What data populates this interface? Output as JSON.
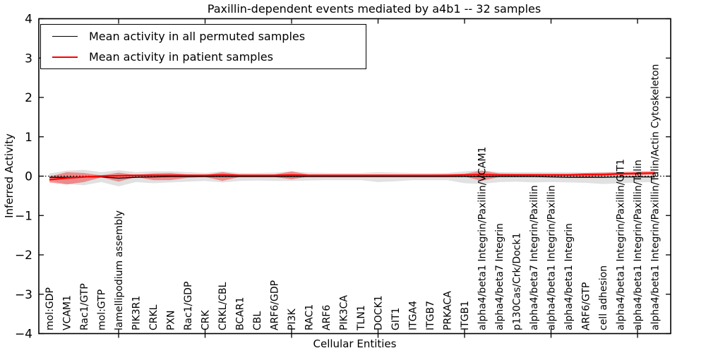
{
  "title": "Paxillin-dependent events mediated by a4b1 -- 32 samples",
  "axes": {
    "xlabel": "Cellular Entities",
    "ylabel": "Inferred Activity"
  },
  "chart_data": {
    "type": "line",
    "title": "Paxillin-dependent events mediated by a4b1 -- 32 samples",
    "xlabel": "Cellular Entities",
    "ylabel": "Inferred Activity",
    "ylim": [
      -4,
      4
    ],
    "yticks": [
      4,
      3,
      2,
      1,
      0,
      -1,
      -2,
      -3,
      -4
    ],
    "grid": false,
    "zero_line": true,
    "legend_position": "upper left",
    "x_major_tick_indices": [
      4,
      9,
      14,
      19,
      24,
      29,
      34
    ],
    "categories": [
      "mol:GDP",
      "VCAM1",
      "Rac1/GTP",
      "mol:GTP",
      "lamellipodium assembly",
      "PIK3R1",
      "CRKL",
      "PXN",
      "Rac1/GDP",
      "CRK",
      "CRKL/CBL",
      "BCAR1",
      "CBL",
      "ARF6/GDP",
      "PI3K",
      "RAC1",
      "ARF6",
      "PIK3CA",
      "TLN1",
      "DOCK1",
      "GIT1",
      "ITGA4",
      "ITGB7",
      "PRKACA",
      "ITGB1",
      "alpha4/beta1 Integrin/Paxillin/VCAM1",
      "alpha4/beta7 Integrin",
      "p130Cas/Crk/Dock1",
      "alpha4/beta7 Integrin/Paxillin",
      "alpha4/beta1 Integrin/Paxillin",
      "alpha4/beta1 Integrin",
      "ARF6/GTP",
      "cell adhesion",
      "alpha4/beta1 Integrin/Paxillin/GIT1",
      "alpha4/beta1 Integrin/Paxillin/Talin",
      "alpha4/beta1 Integrin/Paxillin/Talin/Actin Cytoskeleton"
    ],
    "series": [
      {
        "name": "Mean activity in all permuted samples",
        "color": "#000000",
        "line_width": 1.3,
        "band_color": "#444444",
        "band_opacity": 0.16,
        "mean": [
          -0.03,
          -0.03,
          -0.02,
          -0.02,
          -0.05,
          -0.03,
          -0.02,
          -0.01,
          -0.01,
          -0.01,
          -0.01,
          -0.01,
          -0.01,
          -0.01,
          -0.01,
          -0.01,
          -0.01,
          -0.01,
          -0.01,
          -0.01,
          -0.01,
          -0.01,
          -0.01,
          -0.01,
          -0.01,
          -0.01,
          -0.01,
          -0.01,
          -0.01,
          -0.02,
          -0.03,
          -0.03,
          -0.03,
          -0.02,
          -0.02,
          -0.02
        ],
        "upper": [
          0.07,
          0.14,
          0.16,
          0.1,
          0.15,
          0.1,
          0.12,
          0.12,
          0.1,
          0.08,
          0.12,
          0.08,
          0.08,
          0.09,
          0.12,
          0.09,
          0.08,
          0.08,
          0.08,
          0.1,
          0.09,
          0.08,
          0.08,
          0.08,
          0.12,
          0.15,
          0.1,
          0.1,
          0.1,
          0.1,
          0.1,
          0.09,
          0.1,
          0.1,
          0.09,
          0.1
        ],
        "lower": [
          -0.12,
          -0.2,
          -0.23,
          -0.15,
          -0.26,
          -0.15,
          -0.18,
          -0.16,
          -0.14,
          -0.12,
          -0.16,
          -0.12,
          -0.11,
          -0.12,
          -0.12,
          -0.11,
          -0.1,
          -0.1,
          -0.1,
          -0.15,
          -0.13,
          -0.1,
          -0.1,
          -0.1,
          -0.18,
          -0.2,
          -0.15,
          -0.14,
          -0.16,
          -0.15,
          -0.16,
          -0.17,
          -0.2,
          -0.18,
          -0.16,
          -0.15
        ]
      },
      {
        "name": "Mean activity in patient samples",
        "color": "#ff0000",
        "line_width": 2.2,
        "band_color": "#ff0000",
        "band_opacity": 0.38,
        "mean": [
          -0.09,
          -0.05,
          -0.02,
          0.0,
          0.01,
          0.02,
          0.02,
          0.02,
          0.02,
          0.02,
          0.03,
          0.02,
          0.02,
          0.02,
          0.03,
          0.02,
          0.02,
          0.02,
          0.02,
          0.02,
          0.02,
          0.02,
          0.02,
          0.02,
          0.03,
          0.04,
          0.03,
          0.03,
          0.03,
          0.03,
          0.03,
          0.04,
          0.04,
          0.06,
          0.07,
          0.08
        ],
        "upper": [
          -0.01,
          0.1,
          0.08,
          0.02,
          0.09,
          0.03,
          0.07,
          0.08,
          0.04,
          0.03,
          0.1,
          0.04,
          0.03,
          0.04,
          0.12,
          0.04,
          0.04,
          0.04,
          0.04,
          0.04,
          0.04,
          0.04,
          0.04,
          0.05,
          0.06,
          0.14,
          0.07,
          0.06,
          0.06,
          0.06,
          0.06,
          0.08,
          0.09,
          0.1,
          0.12,
          0.13
        ],
        "lower": [
          -0.16,
          -0.21,
          -0.15,
          -0.03,
          -0.14,
          -0.02,
          -0.1,
          -0.1,
          -0.04,
          -0.02,
          -0.12,
          -0.02,
          -0.02,
          -0.02,
          -0.08,
          -0.01,
          -0.01,
          -0.01,
          -0.01,
          -0.01,
          -0.01,
          -0.01,
          -0.01,
          -0.01,
          -0.01,
          -0.12,
          -0.02,
          -0.01,
          -0.01,
          -0.01,
          -0.01,
          -0.02,
          0.0,
          0.02,
          0.03,
          0.04
        ]
      }
    ]
  },
  "legend": {
    "items": [
      {
        "label": "Mean activity in all permuted samples",
        "color": "#000000"
      },
      {
        "label": "Mean activity in patient samples",
        "color": "#ff0000"
      }
    ]
  }
}
